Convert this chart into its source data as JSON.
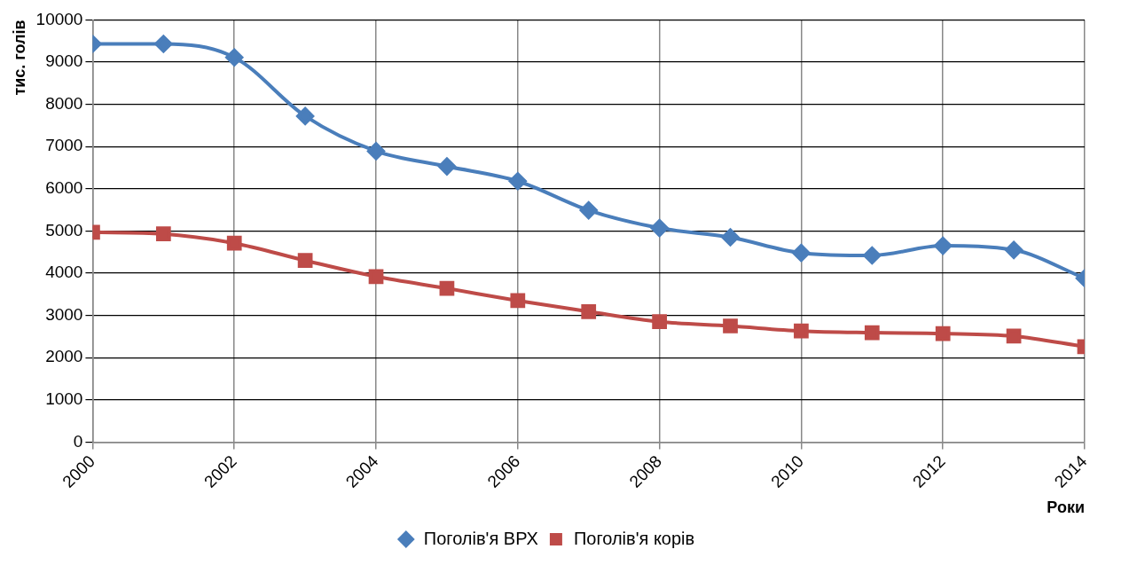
{
  "chart_data": {
    "type": "line",
    "xlabel": "Роки",
    "ylabel": "тис. голів",
    "x": [
      2000,
      2001,
      2002,
      2003,
      2004,
      2005,
      2006,
      2007,
      2008,
      2009,
      2010,
      2011,
      2012,
      2013,
      2014
    ],
    "series": [
      {
        "name": "Поголів'я ВРХ",
        "color": "#4a7ebb",
        "marker": "diamond",
        "values": [
          9430,
          9430,
          9110,
          7720,
          6890,
          6530,
          6180,
          5490,
          5070,
          4850,
          4480,
          4420,
          4650,
          4550,
          3880
        ]
      },
      {
        "name": "Поголів'я корів",
        "color": "#be4b48",
        "marker": "square",
        "values": [
          4970,
          4930,
          4710,
          4300,
          3920,
          3640,
          3350,
          3090,
          2850,
          2750,
          2630,
          2590,
          2570,
          2510,
          2260
        ]
      }
    ],
    "xlim": [
      2000,
      2014
    ],
    "xticks": [
      2000,
      2002,
      2004,
      2006,
      2008,
      2010,
      2012,
      2014
    ],
    "ylim": [
      0,
      10000
    ],
    "yticks": [
      0,
      1000,
      2000,
      3000,
      4000,
      5000,
      6000,
      7000,
      8000,
      9000,
      10000
    ],
    "grid": true,
    "legend": "bottom"
  }
}
